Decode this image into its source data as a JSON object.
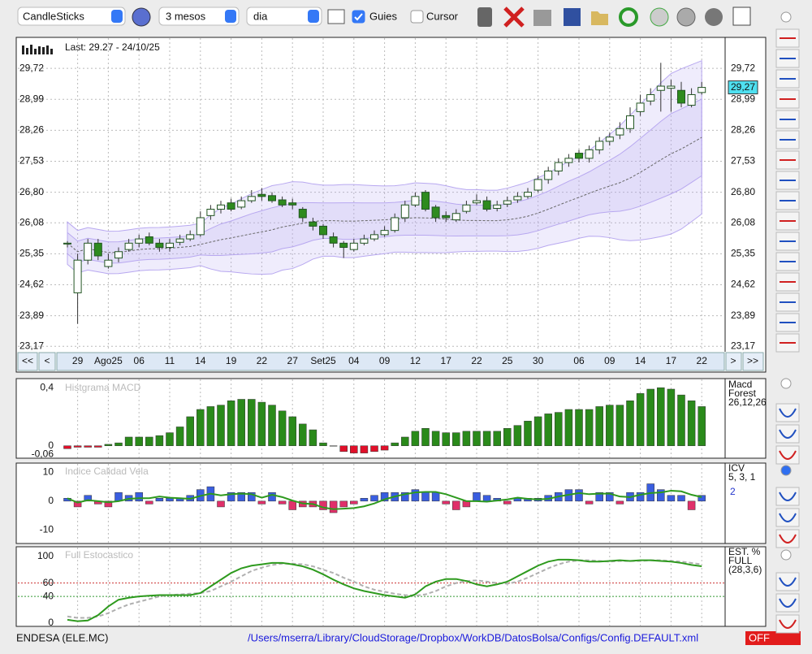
{
  "toolbar": {
    "chart_type": "CandleSticks",
    "period": "3 mesos",
    "interval": "dia",
    "guides_label": "Guies",
    "guides_checked": true,
    "cursor_label": "Cursor",
    "cursor_checked": false
  },
  "price_chart": {
    "type": "candlestick",
    "info": "Last: 29.27 - 24/10/25",
    "categories": [
      null,
      "29",
      null,
      null,
      "Ago25",
      null,
      null,
      "06",
      null,
      null,
      "11",
      null,
      null,
      "14",
      null,
      null,
      "19",
      null,
      null,
      "22",
      null,
      null,
      "27",
      null,
      null,
      "Set25",
      null,
      null,
      "04",
      null,
      null,
      "09",
      null,
      null,
      "12",
      null,
      null,
      "17",
      null,
      null,
      "22",
      null,
      null,
      "25",
      null,
      null,
      "30",
      null,
      null,
      null,
      "06",
      null,
      null,
      "09",
      null,
      null,
      "14",
      null,
      null,
      "17",
      null,
      null,
      "22"
    ],
    "open": [
      25.58,
      24.43,
      25.2,
      25.6,
      25.05,
      25.25,
      25.45,
      25.6,
      25.75,
      25.6,
      25.5,
      25.62,
      25.7,
      25.8,
      26.25,
      26.4,
      26.55,
      26.45,
      26.6,
      26.75,
      26.72,
      26.62,
      26.55,
      26.4,
      26.1,
      26.0,
      25.75,
      25.6,
      25.45,
      25.6,
      25.7,
      25.8,
      25.9,
      26.2,
      26.5,
      26.8,
      26.45,
      26.25,
      26.15,
      26.35,
      26.55,
      26.6,
      26.42,
      26.52,
      26.62,
      26.7,
      26.85,
      27.1,
      27.3,
      27.5,
      27.72,
      27.6,
      27.8,
      28.0,
      28.15,
      28.3,
      28.7,
      28.95,
      29.2,
      29.25,
      29.2,
      28.85,
      29.15
    ],
    "high": [
      25.65,
      25.35,
      25.7,
      25.7,
      25.35,
      25.5,
      25.7,
      25.8,
      25.85,
      25.7,
      25.7,
      25.8,
      25.9,
      26.35,
      26.5,
      26.6,
      26.65,
      26.7,
      26.85,
      26.9,
      26.8,
      26.7,
      26.65,
      26.45,
      26.2,
      26.05,
      25.85,
      25.65,
      25.7,
      25.8,
      25.9,
      26.0,
      26.3,
      26.6,
      26.8,
      26.85,
      26.5,
      26.35,
      26.4,
      26.6,
      26.75,
      26.7,
      26.6,
      26.7,
      26.8,
      26.9,
      27.2,
      27.4,
      27.6,
      27.7,
      27.8,
      27.9,
      28.1,
      28.2,
      28.45,
      28.8,
      29.1,
      29.25,
      29.85,
      29.45,
      29.4,
      29.25,
      29.4
    ],
    "low": [
      25.5,
      23.7,
      25.1,
      25.2,
      25.0,
      25.15,
      25.4,
      25.5,
      25.55,
      25.4,
      25.4,
      25.55,
      25.65,
      25.75,
      26.15,
      26.3,
      26.35,
      26.4,
      26.55,
      26.6,
      26.55,
      26.45,
      26.4,
      26.1,
      25.9,
      25.7,
      25.5,
      25.25,
      25.4,
      25.55,
      25.65,
      25.75,
      25.85,
      26.1,
      26.45,
      26.35,
      26.1,
      26.1,
      26.1,
      26.3,
      26.5,
      26.35,
      26.35,
      26.45,
      26.55,
      26.65,
      26.8,
      27.0,
      27.2,
      27.4,
      27.5,
      27.5,
      27.7,
      27.9,
      28.05,
      28.2,
      28.6,
      28.85,
      28.7,
      28.7,
      28.8,
      28.8,
      29.1
    ],
    "close": [
      25.6,
      25.2,
      25.6,
      25.3,
      25.2,
      25.4,
      25.6,
      25.7,
      25.6,
      25.5,
      25.6,
      25.7,
      25.8,
      26.2,
      26.4,
      26.5,
      26.4,
      26.6,
      26.7,
      26.7,
      26.6,
      26.5,
      26.5,
      26.2,
      26.0,
      25.8,
      25.6,
      25.5,
      25.6,
      25.7,
      25.8,
      25.9,
      26.2,
      26.5,
      26.7,
      26.4,
      26.2,
      26.2,
      26.3,
      26.5,
      26.6,
      26.4,
      26.5,
      26.6,
      26.7,
      26.8,
      27.1,
      27.3,
      27.5,
      27.6,
      27.6,
      27.8,
      28.0,
      28.1,
      28.3,
      28.6,
      28.9,
      29.1,
      29.3,
      29.3,
      28.9,
      29.1,
      29.27
    ],
    "ylim": [
      23.06,
      30.43
    ],
    "yticks": [
      {
        "value": 23.17,
        "label": "23,17"
      },
      {
        "value": 23.89,
        "label": "23,89"
      },
      {
        "value": 24.62,
        "label": "24,62"
      },
      {
        "value": 25.35,
        "label": "25,35"
      },
      {
        "value": 26.08,
        "label": "26,08"
      },
      {
        "value": 26.8,
        "label": "26,80"
      },
      {
        "value": 27.53,
        "label": "27,53"
      },
      {
        "value": 28.26,
        "label": "28,26"
      },
      {
        "value": 28.99,
        "label": "28,99"
      },
      {
        "value": 29.72,
        "label": "29,72"
      }
    ],
    "last": {
      "value": 29.27,
      "label": "29,27"
    },
    "up_color": "#ffffff",
    "down_color": "#2e8b1e",
    "band_color": "#b8a8f0",
    "grid": true
  },
  "nav": {
    "first": "<<",
    "prev": "<",
    "next": ">",
    "last": ">>"
  },
  "macd": {
    "type": "bar",
    "title": "Histgrama MACD",
    "legend": [
      "Macd",
      "Forest",
      "26,12,26"
    ],
    "values": [
      -0.02,
      -0.01,
      -0.01,
      -0.01,
      0.01,
      0.02,
      0.06,
      0.06,
      0.06,
      0.07,
      0.09,
      0.13,
      0.2,
      0.25,
      0.27,
      0.28,
      0.31,
      0.32,
      0.32,
      0.3,
      0.28,
      0.24,
      0.2,
      0.15,
      0.11,
      0.02,
      0,
      -0.04,
      -0.05,
      -0.05,
      -0.04,
      -0.03,
      0.02,
      0.06,
      0.1,
      0.12,
      0.1,
      0.09,
      0.09,
      0.1,
      0.1,
      0.1,
      0.1,
      0.12,
      0.14,
      0.17,
      0.2,
      0.22,
      0.23,
      0.25,
      0.25,
      0.25,
      0.27,
      0.28,
      0.28,
      0.31,
      0.36,
      0.39,
      0.4,
      0.39,
      0.35,
      0.31,
      0.27
    ],
    "color": "#2a8a1a",
    "negative_color": "#e0102a",
    "ylim": [
      -0.08,
      0.457
    ],
    "yticks": [
      {
        "value": -0.06,
        "label": "-0,06"
      },
      0,
      {
        "value": 0.4,
        "label": "0,4"
      }
    ]
  },
  "icv": {
    "type": "bar",
    "title": "Indice Calidad Vela",
    "legend": [
      "ICV",
      "5, 3, 1"
    ],
    "current": 2,
    "values": [
      1,
      -2,
      2,
      -1,
      -2,
      3,
      2,
      3,
      -1,
      1,
      1,
      1,
      2,
      4,
      5,
      -2,
      3,
      3,
      3,
      -1,
      3,
      -1,
      -3,
      -2,
      -2,
      -3,
      -4,
      -2,
      -1,
      1,
      2,
      3,
      3,
      3,
      4,
      3,
      3,
      -1,
      -3,
      -2,
      3,
      2,
      1,
      -1,
      1,
      1,
      1,
      2,
      3,
      4,
      4,
      -1,
      3,
      3,
      -1,
      3,
      3,
      6,
      4,
      2,
      2,
      -3,
      2
    ],
    "positive_color": "#3a5ee0",
    "negative_color": "#e0306a",
    "line_color": "#2e9a1e",
    "ylim": [
      -14.4,
      12.9
    ],
    "yticks": [
      -10,
      0,
      10
    ]
  },
  "stochastic": {
    "type": "line",
    "title": "Full Estocastico",
    "legend": [
      "EST. %",
      "FULL",
      "(28,3,6)"
    ],
    "series": [
      {
        "color": "#2e9a1e",
        "dashed": false,
        "values": [
          5,
          3,
          4,
          12,
          25,
          35,
          38,
          40,
          41,
          42,
          42,
          42,
          42,
          45,
          55,
          65,
          75,
          82,
          86,
          88,
          90,
          90,
          88,
          85,
          80,
          73,
          65,
          58,
          52,
          48,
          45,
          42,
          40,
          38,
          43,
          55,
          62,
          66,
          66,
          63,
          58,
          55,
          58,
          62,
          70,
          78,
          86,
          92,
          95,
          95,
          94,
          92,
          92,
          93,
          94,
          93,
          94,
          94,
          93,
          92,
          90,
          87,
          85
        ]
      },
      {
        "color": "#b0b0b0",
        "dashed": true,
        "values": [
          10,
          8,
          8,
          10,
          15,
          22,
          28,
          32,
          36,
          40,
          42,
          43,
          44,
          45,
          48,
          55,
          62,
          70,
          78,
          83,
          87,
          89,
          89,
          88,
          85,
          80,
          75,
          68,
          62,
          55,
          50,
          47,
          44,
          42,
          41,
          43,
          48,
          55,
          60,
          63,
          64,
          62,
          60,
          59,
          62,
          68,
          75,
          82,
          88,
          92,
          94,
          94,
          93,
          92,
          93,
          93,
          93,
          94,
          94,
          93,
          92,
          90,
          88
        ]
      }
    ],
    "ylim": [
      -3.6,
      113
    ],
    "yticks": [
      0,
      40,
      60,
      100
    ],
    "level_colors": [
      "#339933",
      "#cc3333"
    ]
  },
  "footer": {
    "symbol": "ENDESA (ELE.MC)",
    "path": "/Users/mserra/Library/CloudStorage/Dropbox/WorkDB/DatosBolsa/Configs/Config.DEFAULT.xml",
    "status": "OFF"
  }
}
